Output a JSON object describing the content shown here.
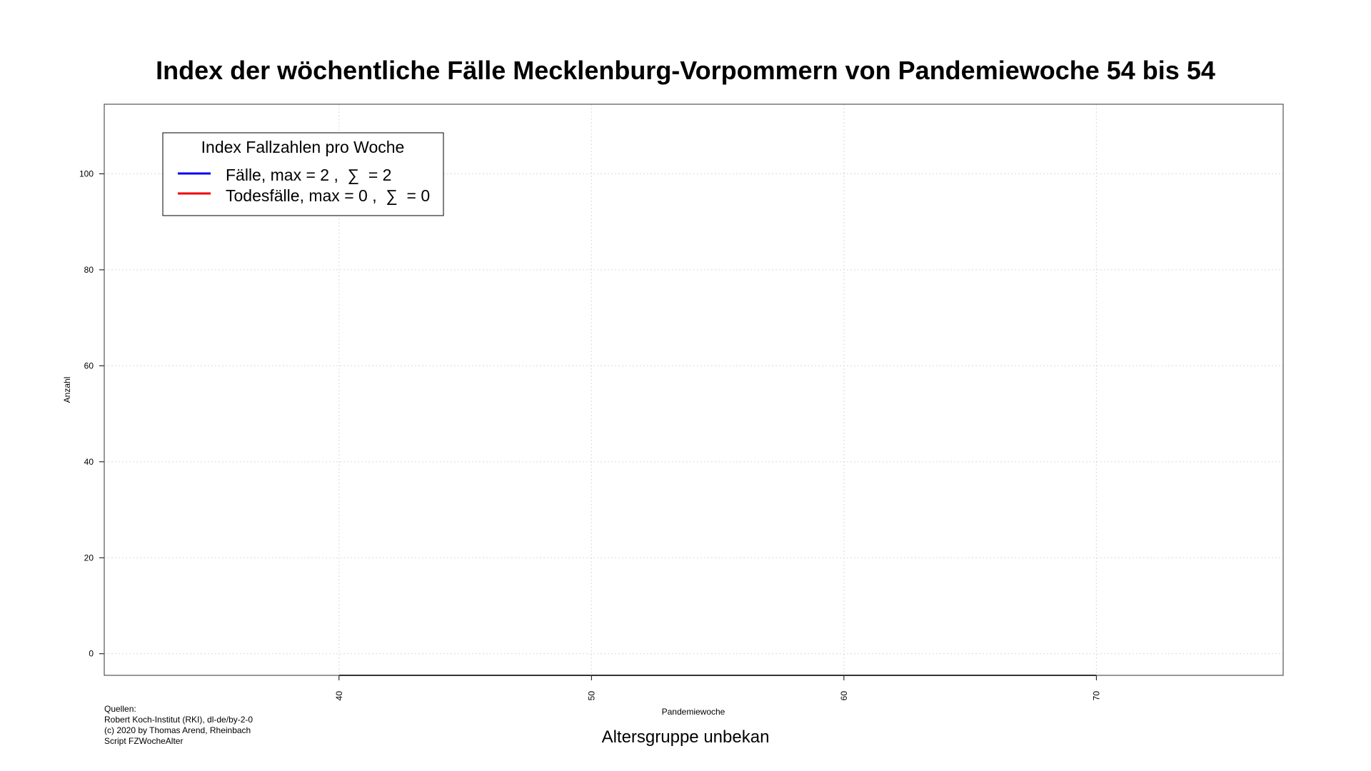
{
  "chart_data": {
    "type": "line",
    "title": "Index der wöchentliche Fälle Mecklenburg-Vorpommern von Pandemiewoche 54 bis 54",
    "subtitle": "Altersgruppe unbekan",
    "xlabel": "Pandemiewoche",
    "ylabel": "Anzahl",
    "xlim": [
      30.7,
      77.4
    ],
    "ylim": [
      -4.5,
      114.5
    ],
    "x_ticks": [
      40,
      50,
      60,
      70
    ],
    "y_ticks": [
      0,
      20,
      40,
      60,
      80,
      100
    ],
    "grid": true,
    "legend": {
      "title": "Index Fallzahlen pro Woche",
      "placement": "top-left",
      "entries": [
        {
          "label": "Fälle, max = 2 ,  ∑  = 2",
          "color": "#0000ee"
        },
        {
          "label": "Todesfälle, max = 0 ,  ∑  = 0",
          "color": "#ee0000"
        }
      ]
    },
    "series": [
      {
        "color": "#000000",
        "x": [
          40,
          70
        ],
        "y": [
          -4.5,
          -4.5
        ]
      }
    ],
    "notes": {
      "heading": "Quellen:",
      "lines": [
        "Robert Koch-Institut (RKI), dl-de/by-2-0",
        "(c) 2020 by Thomas Arend, Rheinbach",
        "Script FZWocheAlter"
      ]
    }
  }
}
